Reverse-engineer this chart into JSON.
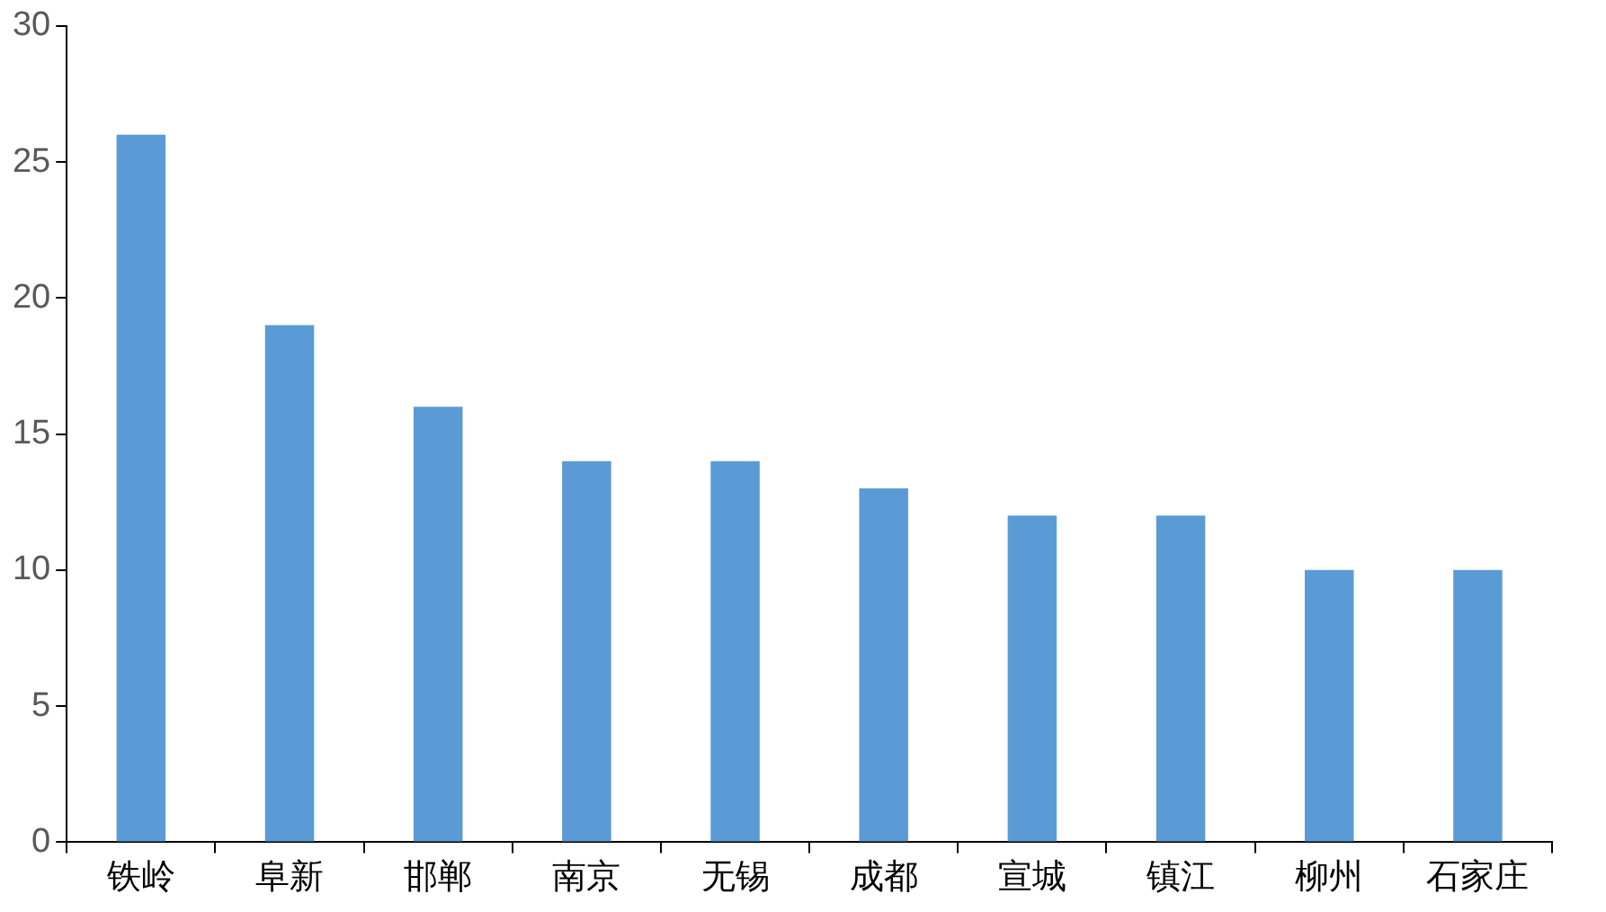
{
  "chart_data": {
    "type": "bar",
    "categories": [
      "铁岭",
      "阜新",
      "邯郸",
      "南京",
      "无锡",
      "成都",
      "宣城",
      "镇江",
      "柳州",
      "石家庄"
    ],
    "values": [
      26,
      19,
      16,
      14,
      14,
      13,
      12,
      12,
      10,
      10
    ],
    "color": "#5b9bd5",
    "ylim": [
      0,
      30
    ],
    "yticks": [
      0,
      5,
      10,
      15,
      20,
      25,
      30
    ],
    "grid": false
  }
}
